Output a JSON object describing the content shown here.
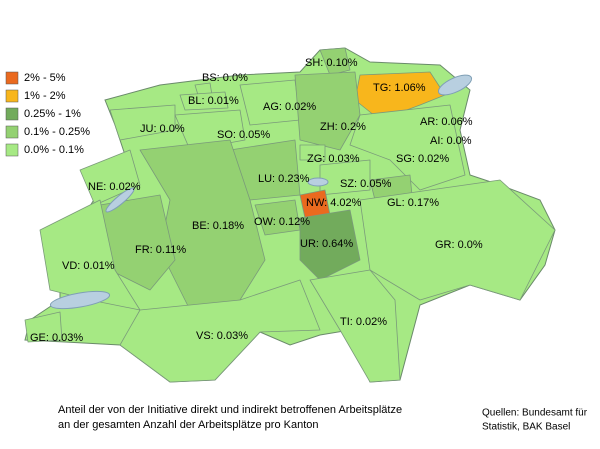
{
  "legend": [
    {
      "label": "2% - 5%",
      "range": [
        2,
        5
      ],
      "color": "#ea6a1f"
    },
    {
      "label": "1% - 2%",
      "range": [
        1,
        2
      ],
      "color": "#f8b61c"
    },
    {
      "label": "0.25% - 1%",
      "range": [
        0.25,
        1
      ],
      "color": "#72ab5c"
    },
    {
      "label": "0.1% - 0.25%",
      "range": [
        0.1,
        0.25
      ],
      "color": "#94d172"
    },
    {
      "label": "0.0% - 0.1%",
      "range": [
        0,
        0.1
      ],
      "color": "#a6e984"
    }
  ],
  "cantons": [
    {
      "label": "SH: 0.10%",
      "value": 0.1
    },
    {
      "label": "TG: 1.06%",
      "value": 1.06
    },
    {
      "label": "BS: 0.0%",
      "value": 0
    },
    {
      "label": "BL: 0.01%",
      "value": 0.01
    },
    {
      "label": "AG: 0.02%",
      "value": 0.02
    },
    {
      "label": "ZH: 0.2%",
      "value": 0.2
    },
    {
      "label": "AR: 0.06%",
      "value": 0.06
    },
    {
      "label": "AI: 0.0%",
      "value": 0
    },
    {
      "label": "JU: 0.0%",
      "value": 0
    },
    {
      "label": "SO: 0.05%",
      "value": 0.05
    },
    {
      "label": "ZG: 0.03%",
      "value": 0.03
    },
    {
      "label": "SG: 0.02%",
      "value": 0.02
    },
    {
      "label": "NE: 0.02%",
      "value": 0.02
    },
    {
      "label": "LU: 0.23%",
      "value": 0.23
    },
    {
      "label": "SZ: 0.05%",
      "value": 0.05
    },
    {
      "label": "NW: 4.02%",
      "value": 4.02
    },
    {
      "label": "GL: 0.17%",
      "value": 0.17
    },
    {
      "label": "BE: 0.18%",
      "value": 0.18
    },
    {
      "label": "OW: 0.12%",
      "value": 0.12
    },
    {
      "label": "UR: 0.64%",
      "value": 0.64
    },
    {
      "label": "FR: 0.11%",
      "value": 0.11
    },
    {
      "label": "GR: 0.0%",
      "value": 0
    },
    {
      "label": "VD: 0.01%",
      "value": 0.01
    },
    {
      "label": "TI: 0.02%",
      "value": 0.02
    },
    {
      "label": "VS: 0.03%",
      "value": 0.03
    },
    {
      "label": "GE: 0.03%",
      "value": 0.03
    }
  ],
  "caption": [
    "Anteil der von der Initiative direkt und indirekt betroffenen Arbeitsplätze",
    "an der gesamten Anzahl der Arbeitsplätze pro Kanton"
  ],
  "source": [
    "Quellen: Bundesamt für",
    "Statistik, BAK Basel"
  ]
}
